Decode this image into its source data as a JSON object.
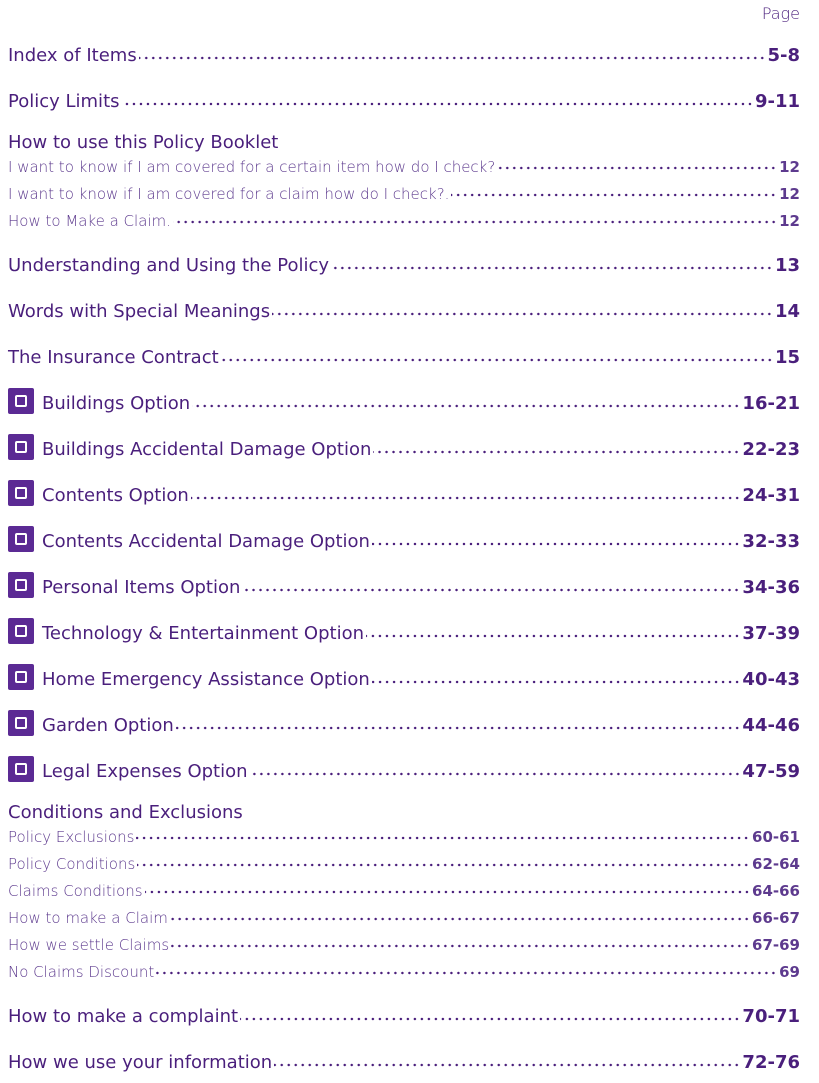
{
  "page_label": "Page",
  "entries": [
    {
      "title": "Index of Items",
      "page": "5-8"
    },
    {
      "title": "Policy Limits",
      "page": "9-11"
    },
    {
      "heading": "How to use this Policy Booklet",
      "items": [
        {
          "title": "I want to know if I am covered for a certain item how do I check?",
          "page": "12"
        },
        {
          "title": "I want to know if I am covered for a claim how do I check?.",
          "page": "12"
        },
        {
          "title": "How to Make a Claim.",
          "page": "12"
        }
      ]
    },
    {
      "title": "Understanding and Using the Policy",
      "page": "13"
    },
    {
      "title": "Words with Special Meanings",
      "page": "14"
    },
    {
      "title": "The Insurance Contract",
      "page": "15"
    },
    {
      "title": "Buildings Option",
      "page": "16-21"
    },
    {
      "title": "Buildings Accidental Damage Option",
      "page": "22-23"
    },
    {
      "title": "Contents Option",
      "page": "24-31"
    },
    {
      "title": "Contents Accidental Damage Option",
      "page": "32-33"
    },
    {
      "title": "Personal Items Option",
      "page": "34-36"
    },
    {
      "title": "Technology & Entertainment Option",
      "page": "37-39"
    },
    {
      "title": "Home Emergency Assistance Option",
      "page": "40-43"
    },
    {
      "title": "Garden Option",
      "page": "44-46"
    },
    {
      "title": "Legal Expenses Option",
      "page": "47-59"
    },
    {
      "heading": "Conditions and Exclusions",
      "items": [
        {
          "title": "Policy Exclusions",
          "page": "60-61"
        },
        {
          "title": "Policy Conditions",
          "page": "62-64"
        },
        {
          "title": "Claims Conditions",
          "page": "64-66"
        },
        {
          "title": "How to make a Claim",
          "page": "66-67"
        },
        {
          "title": "How we settle Claims",
          "page": "67-69"
        },
        {
          "title": "No Claims Discount",
          "page": "69"
        }
      ]
    },
    {
      "title": "How to make a complaint",
      "page": "70-71"
    },
    {
      "title": "How we use your information",
      "page": "72-76"
    }
  ]
}
